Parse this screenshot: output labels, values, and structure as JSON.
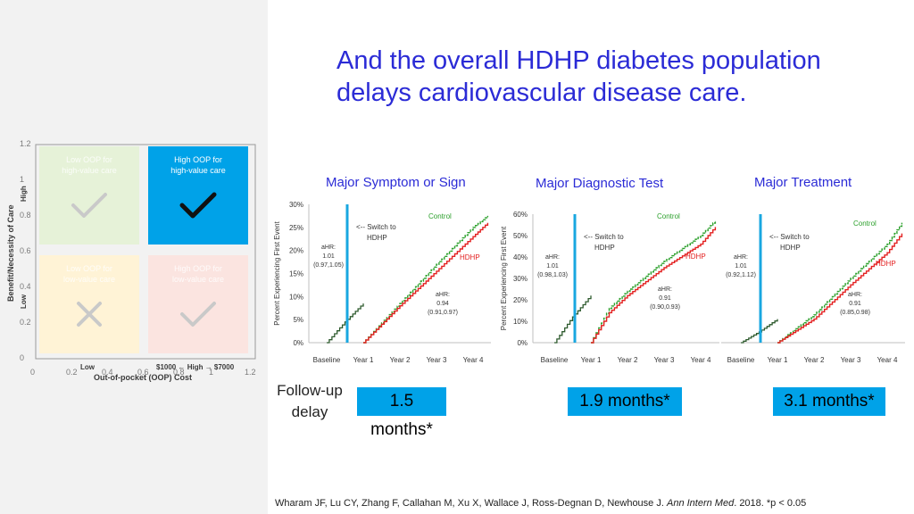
{
  "title": "And the overall HDHP diabetes population delays cardiovascular disease care.",
  "colors": {
    "accent_blue": "#2b2bd6",
    "badge_blue": "#00a2e8",
    "control_green": "#2ca02c",
    "hdhp_red": "#e32020",
    "switch_line": "#19a7e0"
  },
  "quadrant": {
    "y_axis_label": "Benefit/Necessity of Care",
    "x_axis_label": "Out-of-pocket (OOP) Cost",
    "y_high": "High",
    "y_low": "Low",
    "x_low": "Low",
    "x_high": "$1000 ← High → $7000",
    "y_ticks": [
      "1.2",
      "1",
      "0.8",
      "0.6",
      "0.4",
      "0.2",
      "0"
    ],
    "x_ticks": [
      "0",
      "0.2",
      "0.4",
      "0.6",
      "0.8",
      "1",
      "1.2"
    ],
    "boxes": [
      {
        "label": "Low OOP for high-value care",
        "icon": "check-icon",
        "color": "#e6f2d8",
        "faded": true
      },
      {
        "label": "High OOP for high-value care",
        "icon": "check-icon",
        "color": "#00a2e8",
        "faded": false
      },
      {
        "label": "Low OOP for low-value care",
        "icon": "x-icon",
        "color": "#fff3d6",
        "faded": true
      },
      {
        "label": "High OOP for low-value care",
        "icon": "check-icon",
        "color": "#fbe4e0",
        "faded": true
      }
    ]
  },
  "follow_up_label": "Follow-up delay",
  "citation": {
    "authors": "Wharam JF, Lu CY, Zhang F, Callahan M, Xu X, Wallace J, Ross-Degnan D, Newhouse J.",
    "journal": "Ann Intern Med",
    "rest": ". 2018.  *p < 0.05"
  },
  "chart_data": [
    {
      "type": "line",
      "title": "Major Symptom or Sign",
      "ylabel": "Percent Experiencing First Event",
      "ylim": [
        0,
        30
      ],
      "y_ticks": [
        "0%",
        "5%",
        "10%",
        "15%",
        "20%",
        "25%",
        "30%"
      ],
      "x_ticks": [
        "Baseline",
        "Year 1",
        "Year 2",
        "Year 3",
        "Year 4"
      ],
      "switch_label": "<-- Switch to HDHP",
      "ahr_pre": [
        "aHR:",
        "1.01",
        "(0.97,1.05)"
      ],
      "ahr_post": [
        "aHR:",
        "0.94",
        "(0.91,0.97)"
      ],
      "baseline": [
        [
          0,
          0
        ],
        [
          0.5,
          4.5
        ],
        [
          1,
          8.5
        ]
      ],
      "series": [
        {
          "name": "Control",
          "values": [
            [
              1,
              0
            ],
            [
              2,
              8.5
            ],
            [
              3,
              17
            ],
            [
              4,
              25
            ],
            [
              4.4,
              27.5
            ]
          ]
        },
        {
          "name": "HDHP",
          "values": [
            [
              1,
              0
            ],
            [
              2,
              8.0
            ],
            [
              3,
              15.5
            ],
            [
              4,
              23
            ],
            [
              4.4,
              26
            ]
          ]
        }
      ],
      "delay": "1.5 months*"
    },
    {
      "type": "line",
      "title": "Major Diagnostic Test",
      "ylabel": "Percent Experiencing First Event",
      "ylim": [
        0,
        60
      ],
      "y_ticks": [
        "0%",
        "10%",
        "20%",
        "30%",
        "40%",
        "50%",
        "60%"
      ],
      "x_ticks": [
        "Baseline",
        "Year 1",
        "Year 2",
        "Year 3",
        "Year 4"
      ],
      "switch_label": "<-- Switch to HDHP",
      "ahr_pre": [
        "aHR:",
        "1.01",
        "(0.98,1.03)"
      ],
      "ahr_post": [
        "aHR:",
        "0.91",
        "(0.90,0.93)"
      ],
      "baseline": [
        [
          0,
          0
        ],
        [
          0.5,
          12
        ],
        [
          1,
          22
        ]
      ],
      "series": [
        {
          "name": "Control",
          "values": [
            [
              1,
              0
            ],
            [
              1.5,
              16
            ],
            [
              2,
              24
            ],
            [
              3,
              38
            ],
            [
              4,
              50
            ],
            [
              4.4,
              57
            ]
          ]
        },
        {
          "name": "HDHP",
          "values": [
            [
              1,
              0
            ],
            [
              1.5,
              14
            ],
            [
              2,
              22
            ],
            [
              3,
              35
            ],
            [
              4,
              46
            ],
            [
              4.4,
              54
            ]
          ]
        }
      ],
      "delay": "1.9 months*"
    },
    {
      "type": "line",
      "title": "Major Treatment",
      "ylabel": "",
      "ylim": [
        0,
        60
      ],
      "y_ticks": [],
      "x_ticks": [
        "Baseline",
        "Year 1",
        "Year 2",
        "Year 3",
        "Year 4"
      ],
      "switch_label": "<-- Switch to HDHP",
      "ahr_pre": [
        "aHR:",
        "1.01",
        "(0.92,1.12)"
      ],
      "ahr_post": [
        "aHR:",
        "0.91",
        "(0.85,0.98)"
      ],
      "baseline": [
        [
          0,
          0
        ],
        [
          0.5,
          5
        ],
        [
          1,
          11
        ]
      ],
      "series": [
        {
          "name": "Control",
          "values": [
            [
              1,
              0
            ],
            [
              2,
              13
            ],
            [
              3,
              30
            ],
            [
              4,
              46
            ],
            [
              4.4,
              56
            ]
          ]
        },
        {
          "name": "HDHP",
          "values": [
            [
              1,
              0
            ],
            [
              2,
              11
            ],
            [
              3,
              27
            ],
            [
              4,
              42
            ],
            [
              4.4,
              51
            ]
          ]
        }
      ],
      "delay": "3.1 months*"
    }
  ]
}
